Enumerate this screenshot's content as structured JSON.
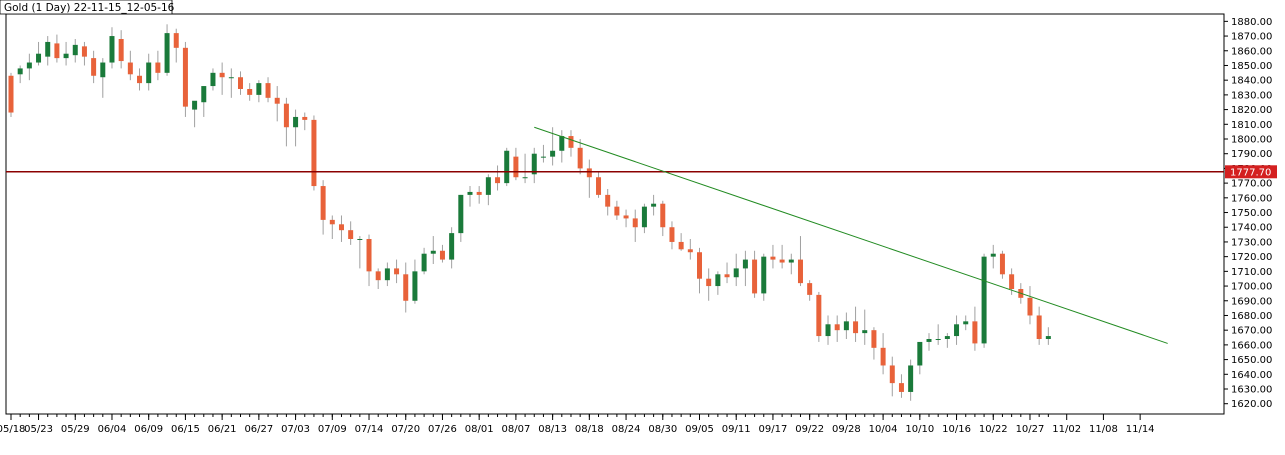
{
  "chart_data": {
    "type": "candlestick",
    "title": "Gold (1 Day) 22-11-15_12-05-16",
    "ylim": [
      1613,
      1885
    ],
    "y_ticks": [
      1620,
      1630,
      1640,
      1650,
      1660,
      1670,
      1680,
      1690,
      1700,
      1710,
      1720,
      1730,
      1740,
      1750,
      1760,
      1770,
      1780,
      1790,
      1800,
      1810,
      1820,
      1830,
      1840,
      1850,
      1860,
      1870,
      1880
    ],
    "y_tick_labels": [
      "1620.00",
      "1630.00",
      "1640.00",
      "1650.00",
      "1660.00",
      "1670.00",
      "1680.00",
      "1690.00",
      "1700.00",
      "1710.00",
      "1720.00",
      "1730.00",
      "1740.00",
      "1750.00",
      "1760.00",
      "1770.00",
      "1780.00",
      "1790.00",
      "1800.00",
      "1810.00",
      "1820.00",
      "1830.00",
      "1840.00",
      "1850.00",
      "1860.00",
      "1870.00",
      "1880.00"
    ],
    "x_tick_labels": [
      {
        "label": "05/18",
        "bar": 0
      },
      {
        "label": "05/23",
        "bar": 3
      },
      {
        "label": "05/29",
        "bar": 7
      },
      {
        "label": "06/04",
        "bar": 11
      },
      {
        "label": "06/09",
        "bar": 15
      },
      {
        "label": "06/15",
        "bar": 19
      },
      {
        "label": "06/21",
        "bar": 23
      },
      {
        "label": "06/27",
        "bar": 27
      },
      {
        "label": "07/03",
        "bar": 31
      },
      {
        "label": "07/09",
        "bar": 35
      },
      {
        "label": "07/14",
        "bar": 39
      },
      {
        "label": "07/20",
        "bar": 43
      },
      {
        "label": "07/26",
        "bar": 47
      },
      {
        "label": "08/01",
        "bar": 51
      },
      {
        "label": "08/07",
        "bar": 55
      },
      {
        "label": "08/13",
        "bar": 59
      },
      {
        "label": "08/18",
        "bar": 63
      },
      {
        "label": "08/24",
        "bar": 67
      },
      {
        "label": "08/30",
        "bar": 71
      },
      {
        "label": "09/05",
        "bar": 75
      },
      {
        "label": "09/11",
        "bar": 79
      },
      {
        "label": "09/17",
        "bar": 83
      },
      {
        "label": "09/22",
        "bar": 87
      },
      {
        "label": "09/28",
        "bar": 91
      },
      {
        "label": "10/04",
        "bar": 95
      },
      {
        "label": "10/10",
        "bar": 99
      },
      {
        "label": "10/16",
        "bar": 103
      },
      {
        "label": "10/22",
        "bar": 107
      },
      {
        "label": "10/27",
        "bar": 111
      },
      {
        "label": "11/02",
        "bar": 115
      },
      {
        "label": "11/08",
        "bar": 119
      },
      {
        "label": "11/14",
        "bar": 123
      }
    ],
    "current_price": 1777.7,
    "current_price_label": "1777.70",
    "horizontal_level": 1777.7,
    "trendline": {
      "from": {
        "bar": 57,
        "price": 1808
      },
      "to": {
        "bar": 126,
        "price": 1661
      }
    },
    "colors": {
      "up": "#1a7a3a",
      "down": "#e8623a",
      "level": "#8b0000",
      "trend": "#228b22",
      "price_bg": "#d42020"
    },
    "candles": [
      [
        1843,
        1845,
        1815,
        1818
      ],
      [
        1844,
        1850,
        1838,
        1848
      ],
      [
        1848,
        1858,
        1840,
        1852
      ],
      [
        1852,
        1866,
        1850,
        1858
      ],
      [
        1856,
        1870,
        1850,
        1866
      ],
      [
        1865,
        1871,
        1852,
        1855
      ],
      [
        1855,
        1866,
        1850,
        1858
      ],
      [
        1857,
        1868,
        1852,
        1864
      ],
      [
        1863,
        1866,
        1850,
        1856
      ],
      [
        1855,
        1860,
        1838,
        1843
      ],
      [
        1842,
        1855,
        1828,
        1852
      ],
      [
        1852,
        1876,
        1848,
        1870
      ],
      [
        1868,
        1874,
        1848,
        1853
      ],
      [
        1852,
        1860,
        1840,
        1844
      ],
      [
        1843,
        1848,
        1833,
        1838
      ],
      [
        1838,
        1858,
        1833,
        1852
      ],
      [
        1852,
        1860,
        1840,
        1845
      ],
      [
        1845,
        1878,
        1843,
        1872
      ],
      [
        1872,
        1875,
        1852,
        1862
      ],
      [
        1862,
        1866,
        1815,
        1822
      ],
      [
        1820,
        1825,
        1808,
        1826
      ],
      [
        1825,
        1836,
        1815,
        1836
      ],
      [
        1836,
        1848,
        1833,
        1845
      ],
      [
        1845,
        1852,
        1830,
        1842
      ],
      [
        1842,
        1848,
        1828,
        1842
      ],
      [
        1842,
        1846,
        1830,
        1834
      ],
      [
        1834,
        1838,
        1826,
        1830
      ],
      [
        1830,
        1840,
        1825,
        1838
      ],
      [
        1838,
        1842,
        1825,
        1828
      ],
      [
        1828,
        1836,
        1812,
        1824
      ],
      [
        1824,
        1828,
        1795,
        1808
      ],
      [
        1808,
        1820,
        1795,
        1815
      ],
      [
        1815,
        1818,
        1806,
        1813
      ],
      [
        1813,
        1816,
        1765,
        1768
      ],
      [
        1768,
        1772,
        1735,
        1745
      ],
      [
        1745,
        1748,
        1732,
        1742
      ],
      [
        1742,
        1748,
        1730,
        1738
      ],
      [
        1738,
        1744,
        1728,
        1732
      ],
      [
        1732,
        1734,
        1712,
        1732
      ],
      [
        1732,
        1735,
        1700,
        1710
      ],
      [
        1710,
        1712,
        1698,
        1704
      ],
      [
        1704,
        1716,
        1700,
        1712
      ],
      [
        1712,
        1718,
        1702,
        1708
      ],
      [
        1708,
        1716,
        1682,
        1690
      ],
      [
        1690,
        1718,
        1688,
        1710
      ],
      [
        1710,
        1726,
        1708,
        1722
      ],
      [
        1722,
        1734,
        1715,
        1724
      ],
      [
        1724,
        1728,
        1716,
        1718
      ],
      [
        1718,
        1740,
        1712,
        1736
      ],
      [
        1736,
        1762,
        1730,
        1762
      ],
      [
        1762,
        1768,
        1754,
        1764
      ],
      [
        1764,
        1768,
        1756,
        1762
      ],
      [
        1762,
        1776,
        1755,
        1774
      ],
      [
        1774,
        1782,
        1765,
        1770
      ],
      [
        1770,
        1794,
        1768,
        1792
      ],
      [
        1788,
        1794,
        1772,
        1774
      ],
      [
        1774,
        1790,
        1770,
        1774
      ],
      [
        1776,
        1794,
        1770,
        1790
      ],
      [
        1788,
        1796,
        1784,
        1788
      ],
      [
        1788,
        1808,
        1782,
        1792
      ],
      [
        1792,
        1806,
        1784,
        1802
      ],
      [
        1802,
        1806,
        1788,
        1794
      ],
      [
        1794,
        1800,
        1776,
        1780
      ],
      [
        1780,
        1786,
        1760,
        1774
      ],
      [
        1774,
        1778,
        1760,
        1762
      ],
      [
        1762,
        1766,
        1748,
        1754
      ],
      [
        1754,
        1758,
        1745,
        1748
      ],
      [
        1748,
        1752,
        1740,
        1746
      ],
      [
        1746,
        1752,
        1730,
        1740
      ],
      [
        1740,
        1756,
        1736,
        1754
      ],
      [
        1754,
        1762,
        1748,
        1756
      ],
      [
        1756,
        1758,
        1734,
        1740
      ],
      [
        1740,
        1744,
        1725,
        1730
      ],
      [
        1730,
        1736,
        1724,
        1725
      ],
      [
        1725,
        1732,
        1718,
        1723
      ],
      [
        1723,
        1726,
        1695,
        1705
      ],
      [
        1705,
        1712,
        1690,
        1700
      ],
      [
        1700,
        1710,
        1694,
        1708
      ],
      [
        1708,
        1716,
        1702,
        1706
      ],
      [
        1706,
        1722,
        1700,
        1712
      ],
      [
        1712,
        1724,
        1700,
        1718
      ],
      [
        1718,
        1724,
        1692,
        1695
      ],
      [
        1695,
        1722,
        1690,
        1720
      ],
      [
        1720,
        1728,
        1712,
        1718
      ],
      [
        1718,
        1728,
        1712,
        1716
      ],
      [
        1716,
        1722,
        1708,
        1718
      ],
      [
        1718,
        1734,
        1700,
        1702
      ],
      [
        1702,
        1704,
        1690,
        1694
      ],
      [
        1694,
        1696,
        1662,
        1666
      ],
      [
        1666,
        1680,
        1660,
        1674
      ],
      [
        1674,
        1680,
        1662,
        1670
      ],
      [
        1670,
        1682,
        1664,
        1676
      ],
      [
        1676,
        1686,
        1662,
        1668
      ],
      [
        1668,
        1684,
        1660,
        1670
      ],
      [
        1670,
        1672,
        1650,
        1658
      ],
      [
        1658,
        1668,
        1640,
        1646
      ],
      [
        1646,
        1652,
        1625,
        1634
      ],
      [
        1634,
        1640,
        1624,
        1628
      ],
      [
        1628,
        1650,
        1622,
        1646
      ],
      [
        1646,
        1660,
        1640,
        1662
      ],
      [
        1662,
        1668,
        1656,
        1664
      ],
      [
        1664,
        1674,
        1660,
        1664
      ],
      [
        1664,
        1668,
        1658,
        1666
      ],
      [
        1666,
        1680,
        1660,
        1674
      ],
      [
        1674,
        1680,
        1670,
        1676
      ],
      [
        1676,
        1686,
        1656,
        1661
      ],
      [
        1661,
        1722,
        1658,
        1720
      ],
      [
        1720,
        1728,
        1712,
        1722
      ],
      [
        1722,
        1724,
        1705,
        1708
      ],
      [
        1708,
        1712,
        1694,
        1698
      ],
      [
        1698,
        1702,
        1688,
        1692
      ],
      [
        1692,
        1700,
        1674,
        1680
      ],
      [
        1680,
        1686,
        1660,
        1664
      ],
      [
        1664,
        1672,
        1660,
        1666
      ]
    ]
  }
}
